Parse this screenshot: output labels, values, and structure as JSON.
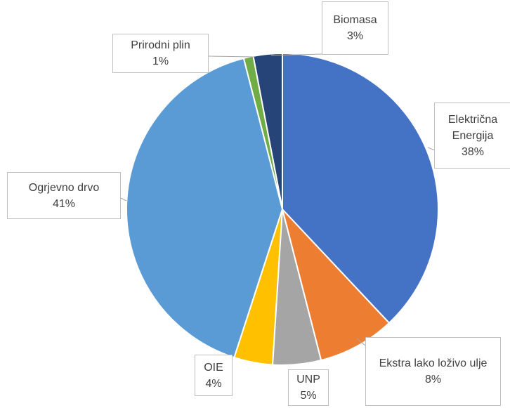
{
  "chart_data": {
    "type": "pie",
    "categories": [
      "Električna Energija",
      "Ekstra lako loživo ulje",
      "UNP",
      "OIE",
      "Ogrjevno drvo",
      "Prirodni plin",
      "Biomasa"
    ],
    "values": [
      38,
      8,
      5,
      4,
      41,
      1,
      3
    ],
    "value_labels": [
      "38%",
      "8%",
      "5%",
      "4%",
      "41%",
      "1%",
      "3%"
    ],
    "colors": [
      "#4472c4",
      "#ed7d31",
      "#a5a5a5",
      "#ffc000",
      "#5b9bd5",
      "#70ad47",
      "#264478"
    ]
  }
}
